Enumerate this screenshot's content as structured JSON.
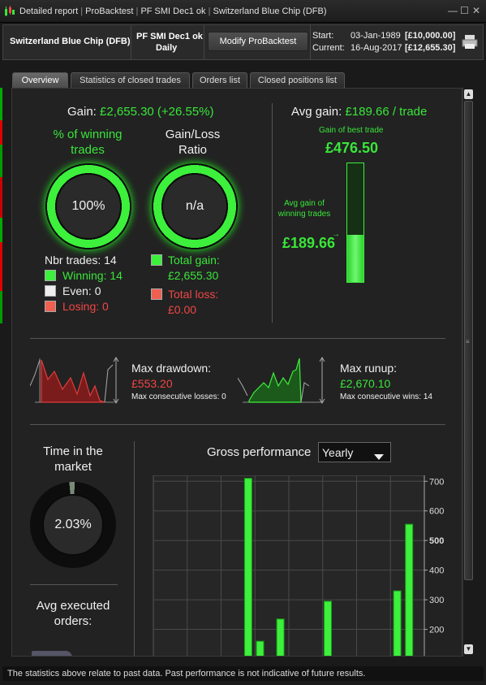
{
  "window": {
    "title_parts": [
      "Detailed report",
      "ProBacktest",
      "PF SMI Dec1 ok",
      "Switzerland Blue Chip (DFB)"
    ],
    "controls": [
      "—",
      "☐",
      "✕"
    ]
  },
  "header": {
    "instrument": "Switzerland Blue Chip (DFB)",
    "system_name": "PF SMI Dec1 ok",
    "timeframe": "Daily",
    "modify_label": "Modify ProBacktest",
    "start_label": "Start:",
    "start_date": "03-Jan-1989",
    "start_capital": "[£10,000.00]",
    "current_label": "Current:",
    "current_date": "16-Aug-2017",
    "current_capital": "[£12,655.30]"
  },
  "tabs": [
    {
      "label": "Overview",
      "active": true
    },
    {
      "label": "Statistics of closed trades",
      "active": false
    },
    {
      "label": "Orders list",
      "active": false
    },
    {
      "label": "Closed positions list",
      "active": false
    }
  ],
  "overview": {
    "gain_label": "Gain:",
    "gain_value": "£2,655.30 (+26.55%)",
    "winning_title": "% of winning trades",
    "winning_value": "100%",
    "ratio_title": "Gain/Loss Ratio",
    "ratio_value": "n/a",
    "nbr_trades_label": "Nbr trades: 14",
    "winning_label": "Winning: 14",
    "even_label": "Even: 0",
    "losing_label": "Losing: 0",
    "total_gain_label": "Total gain:",
    "total_gain_value": "£2,655.30",
    "total_loss_label": "Total loss:",
    "total_loss_value": "£0.00",
    "avg_gain_label": "Avg gain:",
    "avg_gain_value": "£189.66 / trade",
    "best_trade_label": "Gain of best trade",
    "best_trade_value": "£476.50",
    "avg_winning_label": "Avg gain of winning trades",
    "avg_winning_value": "£189.66",
    "avg_fill_ratio": 0.398,
    "max_drawdown_label": "Max drawdown:",
    "max_drawdown_value": "£553.20",
    "max_cons_losses": "Max consecutive losses: 0",
    "max_runup_label": "Max runup:",
    "max_runup_value": "£2,670.10",
    "max_cons_wins": "Max consecutive wins: 14",
    "time_market_label": "Time in the market",
    "time_market_value": "2.03%",
    "time_market_fraction": 0.0203,
    "avg_orders_label": "Avg executed orders:",
    "gross_perf_label": "Gross performance",
    "gross_perf_period": "Yearly"
  },
  "chart_data": {
    "type": "bar",
    "title": "Gross performance",
    "ylim": [
      100,
      720
    ],
    "yticks": [
      "700",
      "600",
      "500",
      "400",
      "300",
      "200"
    ],
    "values": [
      710,
      160,
      235,
      295,
      330,
      555
    ],
    "bar_slots": [
      5.6,
      6.3,
      7.5,
      10.3,
      14.4,
      15.1
    ]
  },
  "footer": {
    "disclaimer": "The statistics above relate to past data. Past performance is not indicative of future results."
  },
  "colors": {
    "accent_green": "#39e639",
    "loss_red": "#f04646",
    "background": "#222222"
  }
}
